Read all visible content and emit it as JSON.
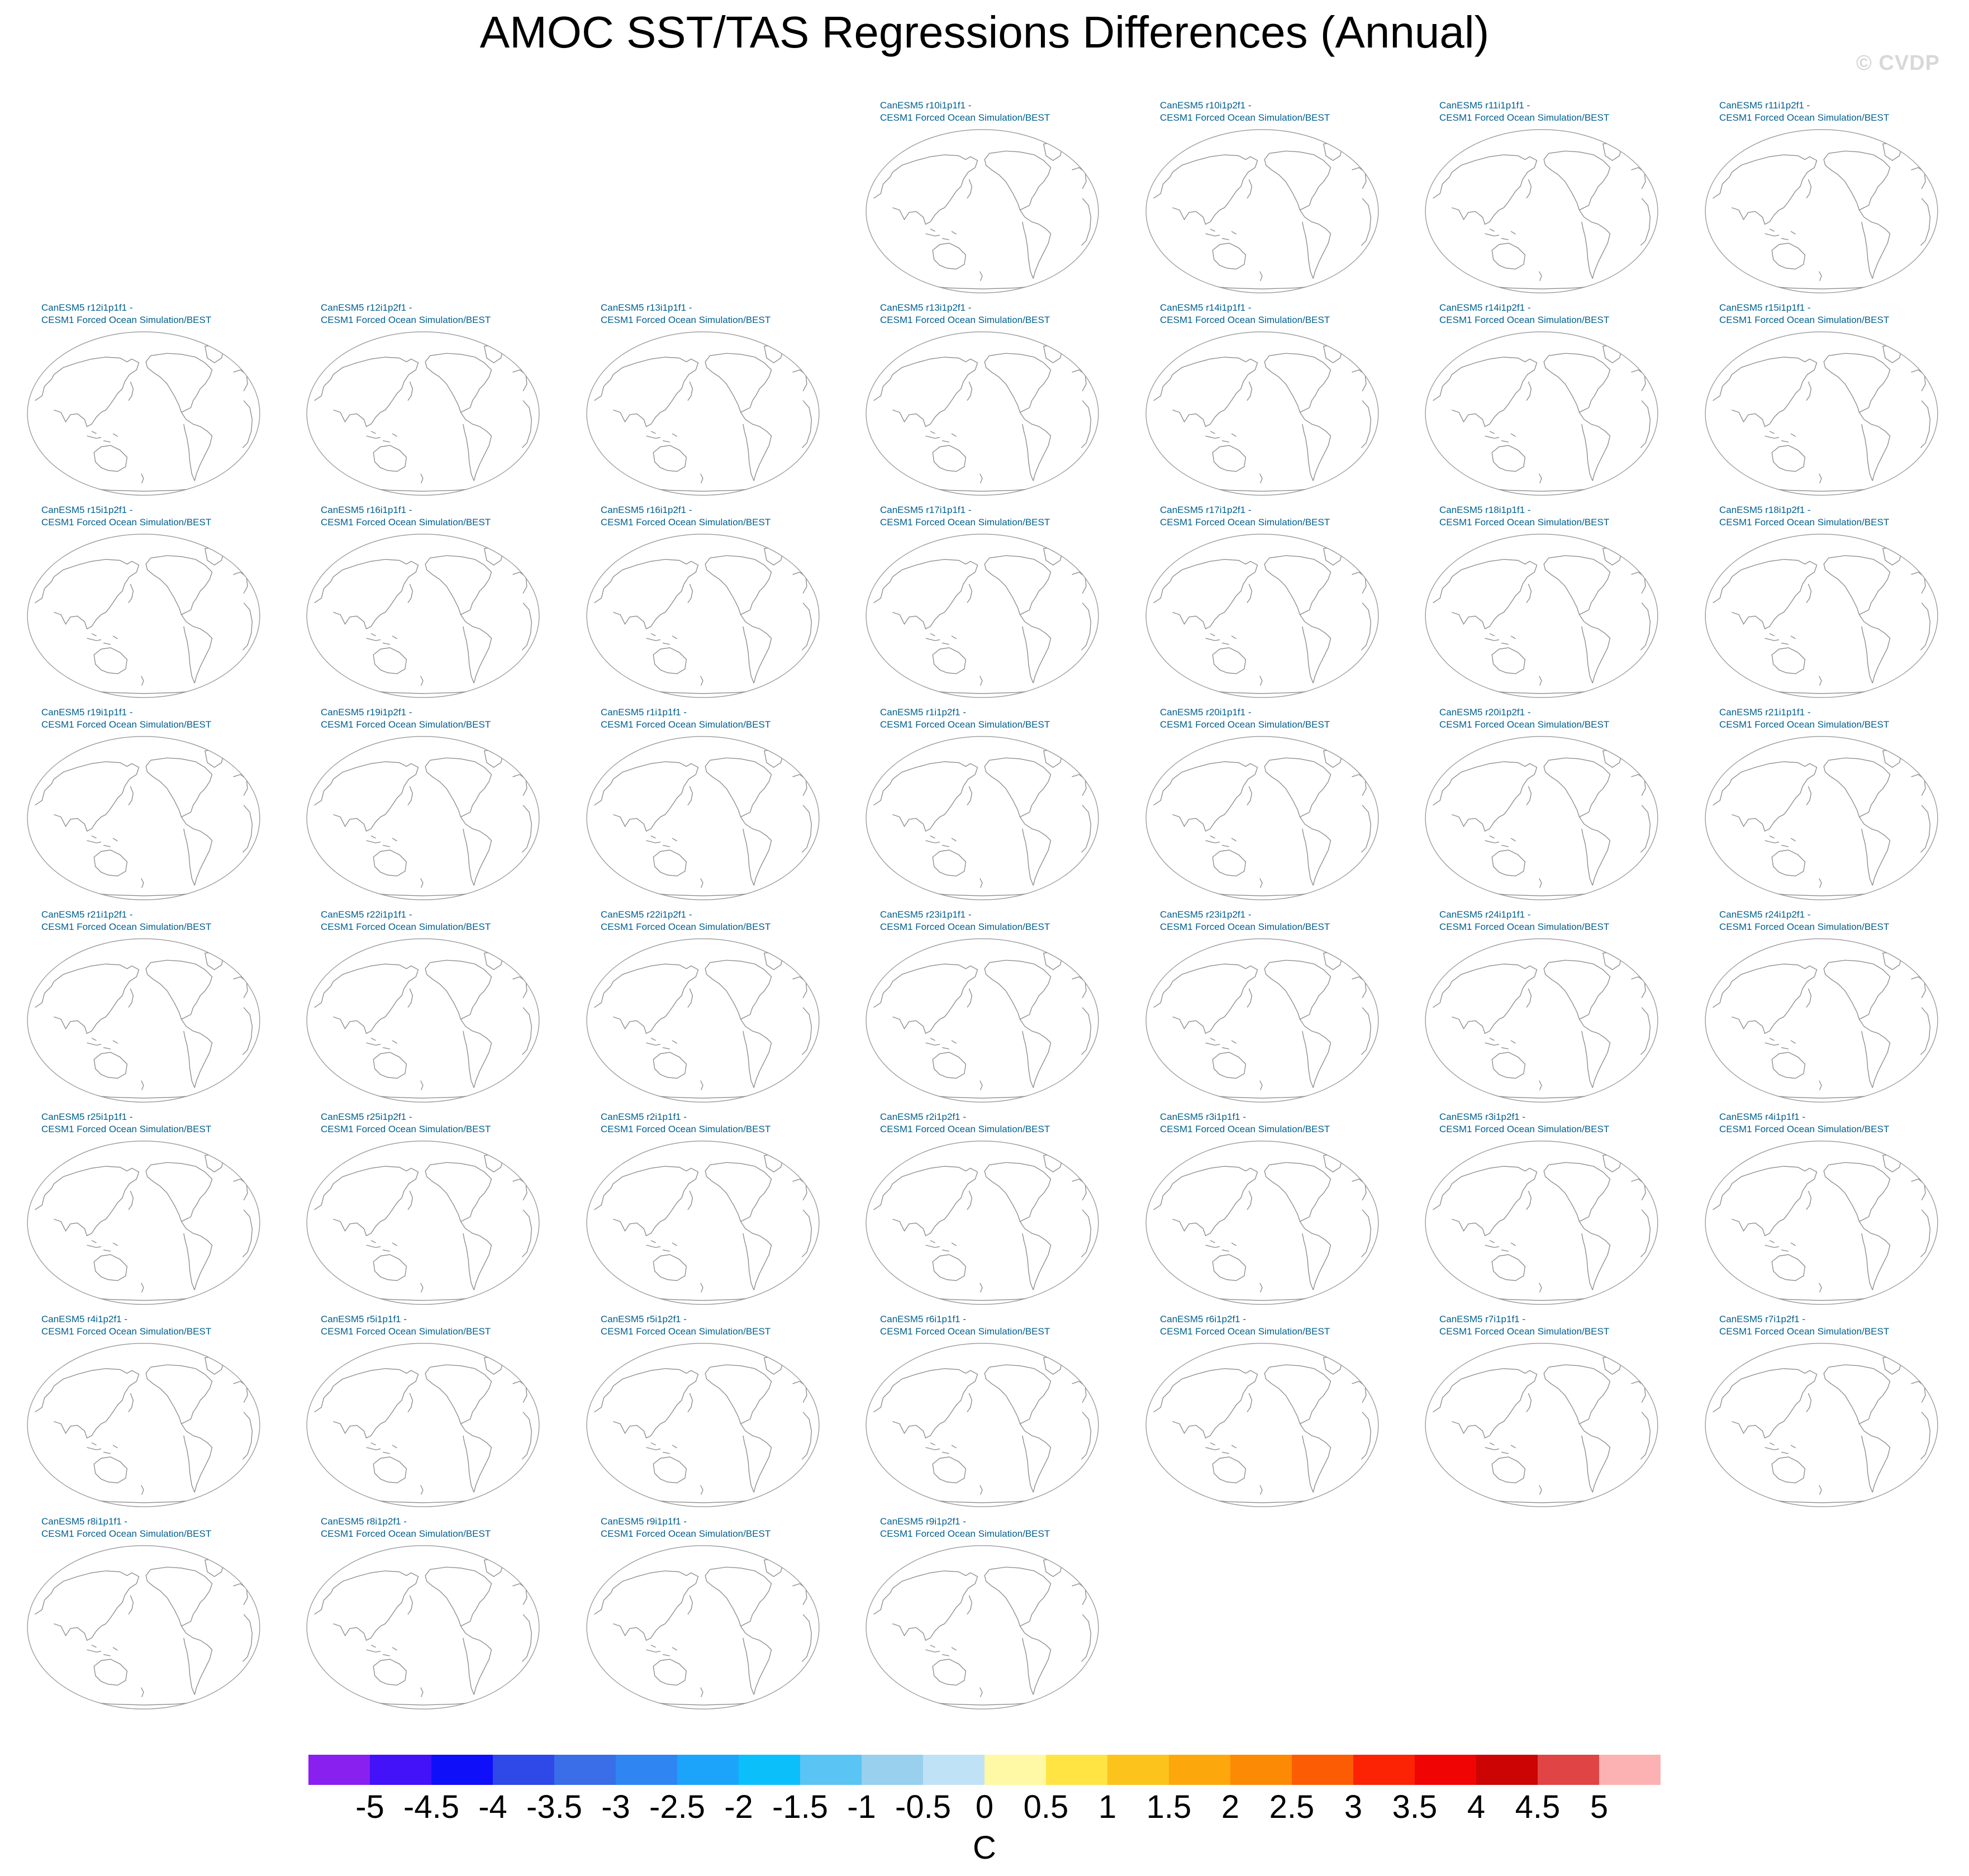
{
  "title": "AMOC SST/TAS Regressions Differences (Annual)",
  "watermark": "© CVDP",
  "panels": [
    {
      "model": "CanESM5 r10i1p1f1 -",
      "obs": "CESM1 Forced Ocean Simulation/BEST"
    },
    {
      "model": "CanESM5 r10i1p2f1 -",
      "obs": "CESM1 Forced Ocean Simulation/BEST"
    },
    {
      "model": "CanESM5 r11i1p1f1 -",
      "obs": "CESM1 Forced Ocean Simulation/BEST"
    },
    {
      "model": "CanESM5 r11i1p2f1 -",
      "obs": "CESM1 Forced Ocean Simulation/BEST"
    },
    {
      "model": "CanESM5 r12i1p1f1 -",
      "obs": "CESM1 Forced Ocean Simulation/BEST"
    },
    {
      "model": "CanESM5 r12i1p2f1 -",
      "obs": "CESM1 Forced Ocean Simulation/BEST"
    },
    {
      "model": "CanESM5 r13i1p1f1 -",
      "obs": "CESM1 Forced Ocean Simulation/BEST"
    },
    {
      "model": "CanESM5 r13i1p2f1 -",
      "obs": "CESM1 Forced Ocean Simulation/BEST"
    },
    {
      "model": "CanESM5 r14i1p1f1 -",
      "obs": "CESM1 Forced Ocean Simulation/BEST"
    },
    {
      "model": "CanESM5 r14i1p2f1 -",
      "obs": "CESM1 Forced Ocean Simulation/BEST"
    },
    {
      "model": "CanESM5 r15i1p1f1 -",
      "obs": "CESM1 Forced Ocean Simulation/BEST"
    },
    {
      "model": "CanESM5 r15i1p2f1 -",
      "obs": "CESM1 Forced Ocean Simulation/BEST"
    },
    {
      "model": "CanESM5 r16i1p1f1 -",
      "obs": "CESM1 Forced Ocean Simulation/BEST"
    },
    {
      "model": "CanESM5 r16i1p2f1 -",
      "obs": "CESM1 Forced Ocean Simulation/BEST"
    },
    {
      "model": "CanESM5 r17i1p1f1 -",
      "obs": "CESM1 Forced Ocean Simulation/BEST"
    },
    {
      "model": "CanESM5 r17i1p2f1 -",
      "obs": "CESM1 Forced Ocean Simulation/BEST"
    },
    {
      "model": "CanESM5 r18i1p1f1 -",
      "obs": "CESM1 Forced Ocean Simulation/BEST"
    },
    {
      "model": "CanESM5 r18i1p2f1 -",
      "obs": "CESM1 Forced Ocean Simulation/BEST"
    },
    {
      "model": "CanESM5 r19i1p1f1 -",
      "obs": "CESM1 Forced Ocean Simulation/BEST"
    },
    {
      "model": "CanESM5 r19i1p2f1 -",
      "obs": "CESM1 Forced Ocean Simulation/BEST"
    },
    {
      "model": "CanESM5 r1i1p1f1 -",
      "obs": "CESM1 Forced Ocean Simulation/BEST"
    },
    {
      "model": "CanESM5 r1i1p2f1 -",
      "obs": "CESM1 Forced Ocean Simulation/BEST"
    },
    {
      "model": "CanESM5 r20i1p1f1 -",
      "obs": "CESM1 Forced Ocean Simulation/BEST"
    },
    {
      "model": "CanESM5 r20i1p2f1 -",
      "obs": "CESM1 Forced Ocean Simulation/BEST"
    },
    {
      "model": "CanESM5 r21i1p1f1 -",
      "obs": "CESM1 Forced Ocean Simulation/BEST"
    },
    {
      "model": "CanESM5 r21i1p2f1 -",
      "obs": "CESM1 Forced Ocean Simulation/BEST"
    },
    {
      "model": "CanESM5 r22i1p1f1 -",
      "obs": "CESM1 Forced Ocean Simulation/BEST"
    },
    {
      "model": "CanESM5 r22i1p2f1 -",
      "obs": "CESM1 Forced Ocean Simulation/BEST"
    },
    {
      "model": "CanESM5 r23i1p1f1 -",
      "obs": "CESM1 Forced Ocean Simulation/BEST"
    },
    {
      "model": "CanESM5 r23i1p2f1 -",
      "obs": "CESM1 Forced Ocean Simulation/BEST"
    },
    {
      "model": "CanESM5 r24i1p1f1 -",
      "obs": "CESM1 Forced Ocean Simulation/BEST"
    },
    {
      "model": "CanESM5 r24i1p2f1 -",
      "obs": "CESM1 Forced Ocean Simulation/BEST"
    },
    {
      "model": "CanESM5 r25i1p1f1 -",
      "obs": "CESM1 Forced Ocean Simulation/BEST"
    },
    {
      "model": "CanESM5 r25i1p2f1 -",
      "obs": "CESM1 Forced Ocean Simulation/BEST"
    },
    {
      "model": "CanESM5 r2i1p1f1 -",
      "obs": "CESM1 Forced Ocean Simulation/BEST"
    },
    {
      "model": "CanESM5 r2i1p2f1 -",
      "obs": "CESM1 Forced Ocean Simulation/BEST"
    },
    {
      "model": "CanESM5 r3i1p1f1 -",
      "obs": "CESM1 Forced Ocean Simulation/BEST"
    },
    {
      "model": "CanESM5 r3i1p2f1 -",
      "obs": "CESM1 Forced Ocean Simulation/BEST"
    },
    {
      "model": "CanESM5 r4i1p1f1 -",
      "obs": "CESM1 Forced Ocean Simulation/BEST"
    },
    {
      "model": "CanESM5 r4i1p2f1 -",
      "obs": "CESM1 Forced Ocean Simulation/BEST"
    },
    {
      "model": "CanESM5 r5i1p1f1 -",
      "obs": "CESM1 Forced Ocean Simulation/BEST"
    },
    {
      "model": "CanESM5 r5i1p2f1 -",
      "obs": "CESM1 Forced Ocean Simulation/BEST"
    },
    {
      "model": "CanESM5 r6i1p1f1 -",
      "obs": "CESM1 Forced Ocean Simulation/BEST"
    },
    {
      "model": "CanESM5 r6i1p2f1 -",
      "obs": "CESM1 Forced Ocean Simulation/BEST"
    },
    {
      "model": "CanESM5 r7i1p1f1 -",
      "obs": "CESM1 Forced Ocean Simulation/BEST"
    },
    {
      "model": "CanESM5 r7i1p2f1 -",
      "obs": "CESM1 Forced Ocean Simulation/BEST"
    },
    {
      "model": "CanESM5 r8i1p1f1 -",
      "obs": "CESM1 Forced Ocean Simulation/BEST"
    },
    {
      "model": "CanESM5 r8i1p2f1 -",
      "obs": "CESM1 Forced Ocean Simulation/BEST"
    },
    {
      "model": "CanESM5 r9i1p1f1 -",
      "obs": "CESM1 Forced Ocean Simulation/BEST"
    },
    {
      "model": "CanESM5 r9i1p2f1 -",
      "obs": "CESM1 Forced Ocean Simulation/BEST"
    }
  ],
  "colorbar": {
    "units": "C",
    "tick_labels": [
      "-5",
      "-4.5",
      "-4",
      "-3.5",
      "-3",
      "-2.5",
      "-2",
      "-1.5",
      "-1",
      "-0.5",
      "0",
      "0.5",
      "1",
      "1.5",
      "2",
      "2.5",
      "3",
      "3.5",
      "4",
      "4.5",
      "5"
    ],
    "colors": [
      "#8a20f0",
      "#4412f8",
      "#0f0ffa",
      "#2f48e8",
      "#3a6ee8",
      "#2f86f2",
      "#1ca4fa",
      "#0bc0fa",
      "#5ac4f4",
      "#98d0ee",
      "#c0e2f6",
      "#fff8a4",
      "#ffe444",
      "#fcc31c",
      "#fca80c",
      "#fc8a04",
      "#fc5c04",
      "#fc2204",
      "#f00404",
      "#cc0404",
      "#e04444",
      "#fcb2b2"
    ]
  }
}
